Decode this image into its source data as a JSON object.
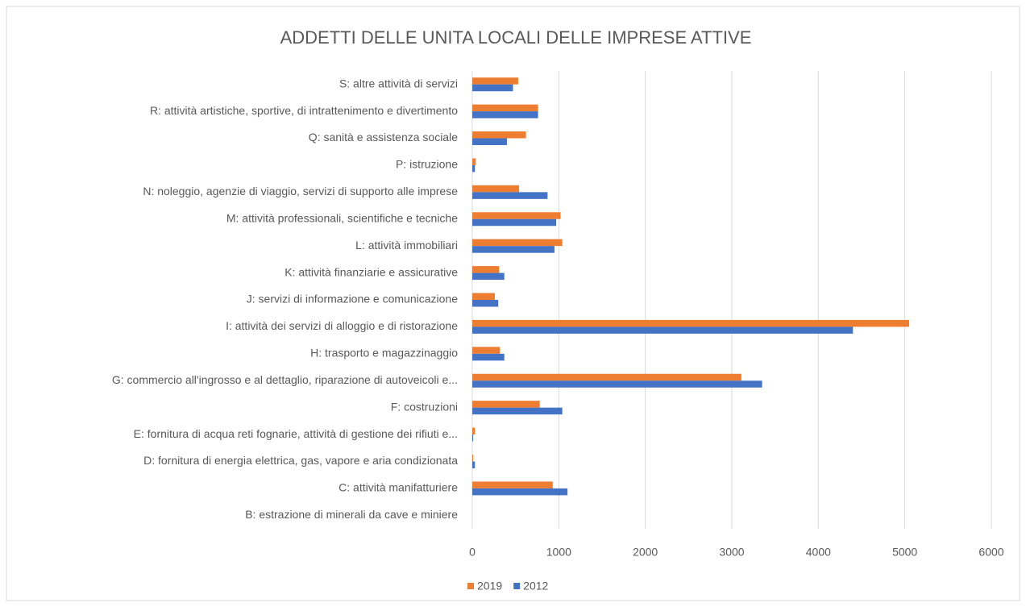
{
  "chart_data": {
    "type": "bar",
    "orientation": "horizontal",
    "title": "ADDETTI DELLE UNITA LOCALI DELLE IMPRESE ATTIVE",
    "categories": [
      "B: estrazione di minerali da cave e miniere",
      "C: attività manifatturiere",
      "D: fornitura di energia elettrica, gas, vapore e aria condizionata",
      "E: fornitura di acqua reti fognarie, attività di gestione dei rifiuti e...",
      "F: costruzioni",
      "G: commercio all'ingrosso e al dettaglio, riparazione di autoveicoli e...",
      "H: trasporto e magazzinaggio",
      "I: attività dei servizi di alloggio e di ristorazione",
      "J: servizi di informazione e comunicazione",
      "K: attività finanziarie e assicurative",
      "L: attività immobiliari",
      "M: attività professionali, scientifiche e tecniche",
      "N: noleggio, agenzie di viaggio, servizi di supporto alle imprese",
      "P: istruzione",
      "Q: sanità e assistenza sociale",
      "R: attività artistiche, sportive, di intrattenimento e divertimento",
      "S: altre attività di servizi"
    ],
    "series": [
      {
        "name": "2019",
        "color": "#ed7d31",
        "values": [
          0,
          930,
          10,
          30,
          780,
          3110,
          320,
          5050,
          260,
          310,
          1040,
          1020,
          540,
          40,
          620,
          760,
          530
        ]
      },
      {
        "name": "2012",
        "color": "#4472c4",
        "values": [
          0,
          1100,
          30,
          10,
          1040,
          3350,
          370,
          4400,
          300,
          370,
          950,
          970,
          870,
          30,
          400,
          760,
          470
        ]
      }
    ],
    "xlim": [
      0,
      6000
    ],
    "xticks": [
      0,
      1000,
      2000,
      3000,
      4000,
      5000,
      6000
    ],
    "grid": true,
    "legend": "bottom"
  }
}
